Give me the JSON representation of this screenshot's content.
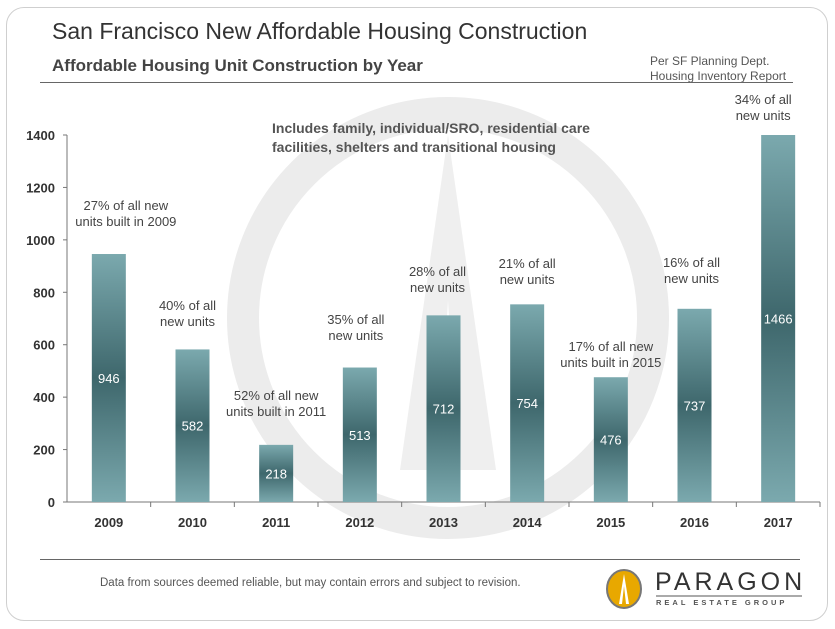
{
  "header": {
    "title": "San Francisco New Affordable Housing Construction",
    "subtitle": "Affordable Housing Unit Construction by Year",
    "source_line1": "Per SF Planning Dept.",
    "source_line2": "Housing Inventory Report"
  },
  "note": {
    "line1": "Includes family, individual/SRO, residential care",
    "line2": "facilities, shelters and transitional housing"
  },
  "footer": {
    "disclaimer": "Data from sources deemed reliable, but may contain errors and subject to revision.",
    "brand": "PARAGON",
    "brand_sub": "REAL ESTATE GROUP"
  },
  "colors": {
    "bar_light": "#7ba9ae",
    "bar_dark": "#3e676c",
    "watermark": "#e9e9e9",
    "logo": "#e8a800"
  },
  "chart_data": {
    "type": "bar",
    "title": "Affordable Housing Unit Construction by Year",
    "xlabel": "",
    "ylabel": "",
    "ylim": [
      0,
      1400
    ],
    "yticks": [
      0,
      200,
      400,
      600,
      800,
      1000,
      1200,
      1400
    ],
    "categories": [
      "2009",
      "2010",
      "2011",
      "2012",
      "2013",
      "2014",
      "2015",
      "2016",
      "2017"
    ],
    "values": [
      946,
      582,
      218,
      513,
      712,
      754,
      476,
      737,
      1466
    ],
    "annotations": [
      [
        "27% of all new",
        "units built in 2009"
      ],
      [
        "40% of all",
        "new units"
      ],
      [
        "52% of all new",
        "units built in 2011"
      ],
      [
        "35% of all",
        "new units"
      ],
      [
        "28% of all",
        "new units"
      ],
      [
        "21% of all",
        "new units"
      ],
      [
        "17% of all new",
        "units built in 2015"
      ],
      [
        "16% of all",
        "new units"
      ],
      [
        "34% of all",
        "new units"
      ]
    ]
  }
}
